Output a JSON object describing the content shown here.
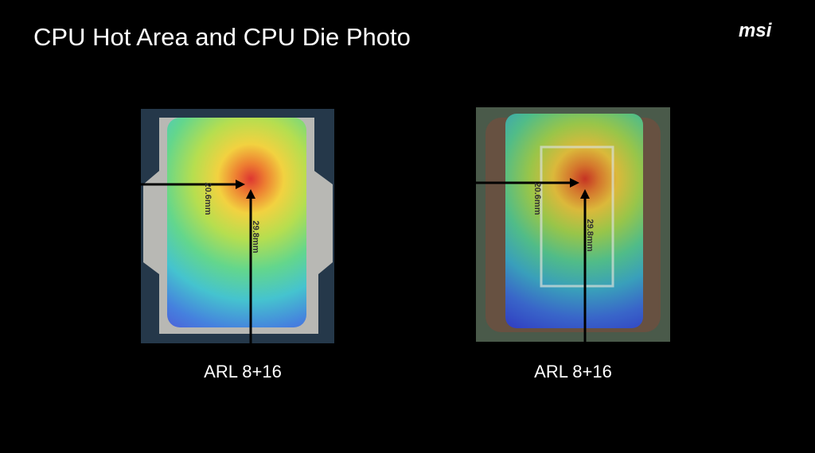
{
  "header": {
    "title": "CPU Hot Area and CPU Die Photo",
    "logo": "msi"
  },
  "panels": [
    {
      "caption": "ARL 8+16",
      "width_label": "20.6mm",
      "height_label": "29.8mm"
    },
    {
      "caption": "ARL 8+16",
      "width_label": "20.6mm",
      "height_label": "29.8mm"
    }
  ]
}
